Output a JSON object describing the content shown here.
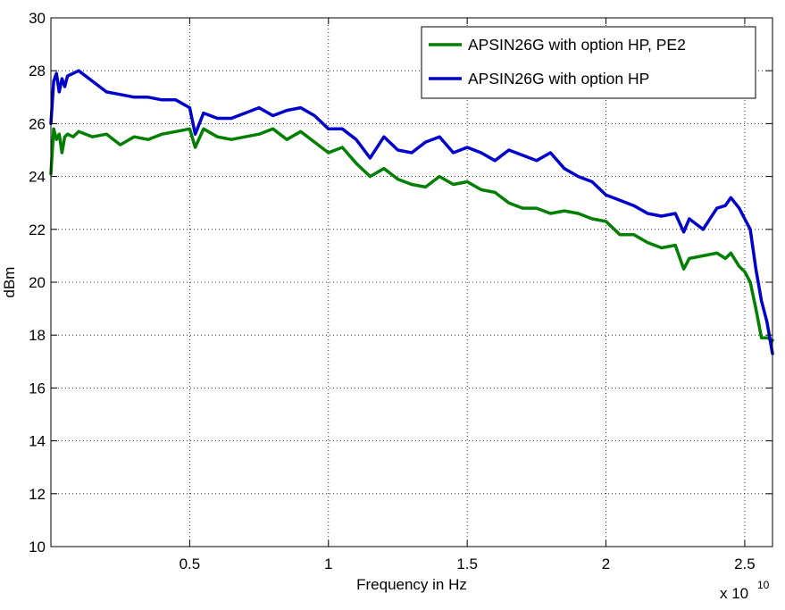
{
  "chart_data": {
    "type": "line",
    "xlabel": "Frequency in Hz",
    "ylabel": "dBm",
    "x_multiplier": "x 10",
    "x_multiplier_exponent": "10",
    "xlim": [
      0.0,
      2.6
    ],
    "ylim": [
      10,
      30
    ],
    "x_ticks": [
      0.5,
      1.0,
      1.5,
      2.0,
      2.5
    ],
    "x_tick_labels": [
      "0.5",
      "1",
      "1.5",
      "2",
      "2.5"
    ],
    "y_ticks": [
      10,
      12,
      14,
      16,
      18,
      20,
      22,
      24,
      26,
      28,
      30
    ],
    "y_tick_labels": [
      "10",
      "12",
      "14",
      "16",
      "18",
      "20",
      "22",
      "24",
      "26",
      "28",
      "30"
    ],
    "grid": true,
    "legend_position": "top-right",
    "series": [
      {
        "name": "APSIN26G with option HP, PE2",
        "color": "#007f00",
        "x": [
          0.0,
          0.01,
          0.02,
          0.03,
          0.04,
          0.05,
          0.06,
          0.08,
          0.1,
          0.15,
          0.2,
          0.25,
          0.3,
          0.35,
          0.4,
          0.45,
          0.5,
          0.52,
          0.55,
          0.6,
          0.65,
          0.7,
          0.75,
          0.8,
          0.85,
          0.9,
          0.95,
          1.0,
          1.05,
          1.1,
          1.15,
          1.2,
          1.25,
          1.3,
          1.35,
          1.4,
          1.45,
          1.5,
          1.55,
          1.6,
          1.65,
          1.7,
          1.75,
          1.8,
          1.85,
          1.9,
          1.95,
          2.0,
          2.05,
          2.1,
          2.15,
          2.2,
          2.25,
          2.28,
          2.3,
          2.35,
          2.4,
          2.43,
          2.45,
          2.48,
          2.5,
          2.52,
          2.54,
          2.56,
          2.58,
          2.6
        ],
        "values": [
          24.1,
          25.8,
          25.4,
          25.6,
          24.9,
          25.5,
          25.6,
          25.5,
          25.7,
          25.5,
          25.6,
          25.2,
          25.5,
          25.4,
          25.6,
          25.7,
          25.8,
          25.1,
          25.8,
          25.5,
          25.4,
          25.5,
          25.6,
          25.8,
          25.4,
          25.7,
          25.3,
          24.9,
          25.1,
          24.5,
          24.0,
          24.3,
          23.9,
          23.7,
          23.6,
          24.0,
          23.7,
          23.8,
          23.5,
          23.4,
          23.0,
          22.8,
          22.8,
          22.6,
          22.7,
          22.6,
          22.4,
          22.3,
          21.8,
          21.8,
          21.5,
          21.3,
          21.4,
          20.5,
          20.9,
          21.0,
          21.1,
          20.9,
          21.1,
          20.6,
          20.4,
          20.0,
          19.0,
          17.9,
          17.9,
          17.8
        ]
      },
      {
        "name": "APSIN26G with option HP",
        "color": "#0000cc",
        "x": [
          0.0,
          0.01,
          0.02,
          0.03,
          0.04,
          0.05,
          0.06,
          0.08,
          0.1,
          0.15,
          0.2,
          0.25,
          0.3,
          0.35,
          0.4,
          0.45,
          0.5,
          0.52,
          0.55,
          0.6,
          0.65,
          0.7,
          0.75,
          0.8,
          0.85,
          0.9,
          0.95,
          1.0,
          1.05,
          1.1,
          1.15,
          1.2,
          1.25,
          1.3,
          1.35,
          1.4,
          1.45,
          1.5,
          1.55,
          1.6,
          1.65,
          1.7,
          1.75,
          1.8,
          1.85,
          1.9,
          1.95,
          2.0,
          2.05,
          2.1,
          2.15,
          2.2,
          2.25,
          2.28,
          2.3,
          2.35,
          2.4,
          2.43,
          2.45,
          2.48,
          2.5,
          2.52,
          2.54,
          2.56,
          2.58,
          2.6
        ],
        "values": [
          26.0,
          27.6,
          27.9,
          27.2,
          27.7,
          27.4,
          27.8,
          27.9,
          28.0,
          27.6,
          27.2,
          27.1,
          27.0,
          27.0,
          26.9,
          26.9,
          26.6,
          25.6,
          26.4,
          26.2,
          26.2,
          26.4,
          26.6,
          26.3,
          26.5,
          26.6,
          26.3,
          25.8,
          25.8,
          25.4,
          24.7,
          25.5,
          25.0,
          24.9,
          25.3,
          25.5,
          24.9,
          25.1,
          24.9,
          24.6,
          25.0,
          24.8,
          24.6,
          24.9,
          24.3,
          24.0,
          23.8,
          23.3,
          23.1,
          22.9,
          22.6,
          22.5,
          22.6,
          21.9,
          22.4,
          22.0,
          22.8,
          22.9,
          23.2,
          22.8,
          22.4,
          22.0,
          20.5,
          19.3,
          18.5,
          17.3
        ]
      }
    ]
  }
}
